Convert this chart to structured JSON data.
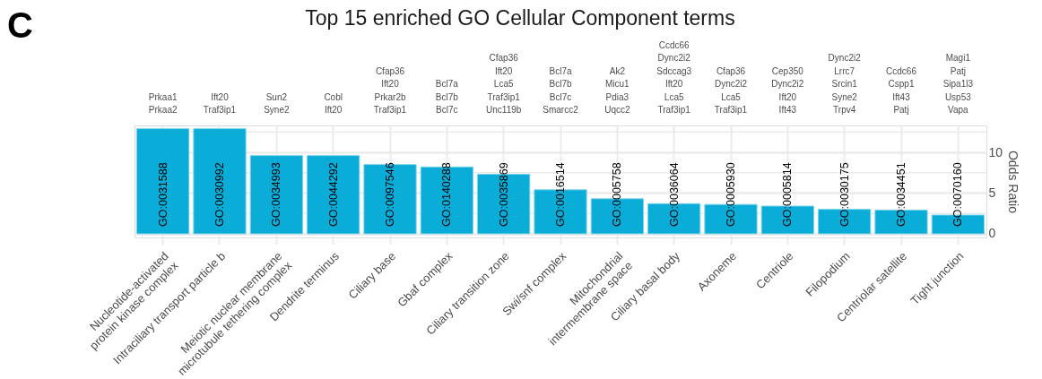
{
  "chart_data": {
    "type": "bar",
    "title": "Top 15 enriched GO Cellular Component terms",
    "ylabel": "Odds  Ratio",
    "categories": [
      "Nucleotide-activated\nprotein kinase complex",
      "Intraciliary transport particle b",
      "Meiotic nuclear membrane\nmicrotubule tethering complex",
      "Dendrite terminus",
      "Ciliary base",
      "Gbaf complex",
      "Ciliary transition zone",
      "Swi/snf complex",
      "Mitochondrial\nintermembrane space",
      "Ciliary basal body",
      "Axoneme",
      "Centriole",
      "Filopodium",
      "Centriolar satellite",
      "Tight junction"
    ],
    "values": [
      12.9,
      12.9,
      9.6,
      9.6,
      8.5,
      8.2,
      7.3,
      5.4,
      4.3,
      3.7,
      3.6,
      3.4,
      3.0,
      2.9,
      2.3
    ],
    "color": "#0aacd8",
    "ylim": [
      -0.45,
      13.3
    ],
    "yticks": [
      0,
      {
        "value": 2.5,
        "label": null
      },
      5,
      {
        "value": 7.5,
        "label": null
      },
      10,
      {
        "value": 12.5,
        "label": null
      }
    ],
    "grid": true,
    "annotations": [
      "C",
      "GO:0031588",
      "GO:0030992",
      "GO:0034993",
      "GO:0044292",
      "GO:0097546",
      "GO:0140288",
      "GO:0035869",
      "GO:0016514",
      "GO:0005758",
      "GO:0036064",
      "GO:0005930",
      "GO:0005814",
      "GO:0030175",
      "GO:0034451",
      "GO:0070160",
      "Prkaa1\nPrkaa2",
      "Ift20\nTraf3ip1",
      "Sun2\nSyne2",
      "Cobl\nIft20",
      "Cfap36\nIft20\nPrkar2b\nTraf3ip1",
      "Bcl7a\nBcl7b\nBcl7c",
      "Cfap36\nIft20\nLca5\nTraf3ip1\nUnc119b",
      "Bcl7a\nBcl7b\nBcl7c\nSmarcc2",
      "Ak2\nMicu1\nPdia3\nUqcc2",
      "Ccdc66\nDync2i2\nSdccag3\nIft20\nLca5\nTraf3ip1",
      "Cfap36\nDync2i2\nLca5\nTraf3ip1",
      "Cep350\nDync2i2\nIft20\nIft43",
      "Dync2i2\nLrrc7\nSrcin1\nSyne2\nTrpv4",
      "Ccdc66\nCspp1\nIft43\nPatj",
      "Magi1\nPatj\nSipa1l3\nUsp53\nVapa"
    ]
  }
}
